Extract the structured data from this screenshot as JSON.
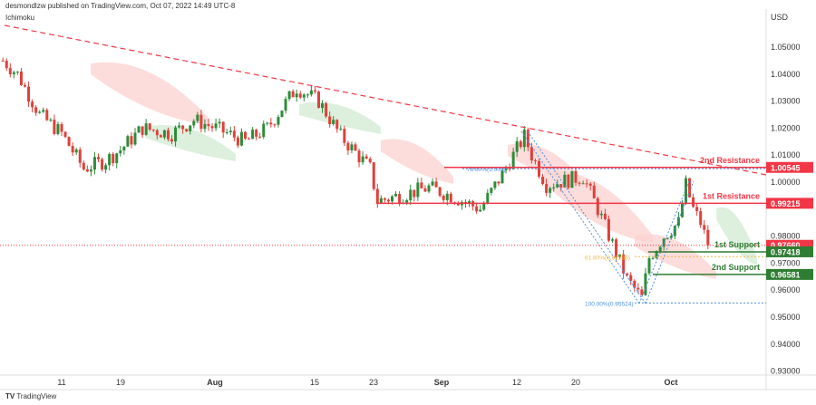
{
  "header": {
    "published": "desmondlzw published on TradingView.com, Oct 07, 2022 14:49 UTC-8",
    "indicator": "Ichimoku"
  },
  "footer": {
    "brand": "TradingView"
  },
  "colors": {
    "up": "#2e8b3a",
    "down": "#e0403a",
    "resistance": "#f23645",
    "support": "#2e7d32",
    "fib_618": "#f5b942",
    "fib_blue": "#4a90e2",
    "cloud_red": "#fbd5d2",
    "cloud_green": "#d3ecd5"
  },
  "chart_data": {
    "type": "candlestick",
    "symbol_currency": "USD",
    "y_ticks": [
      "1.05000",
      "1.04000",
      "1.03000",
      "1.02000",
      "1.01000",
      "1.00000",
      "0.98000",
      "0.97000",
      "0.96000",
      "0.95000",
      "0.94000",
      "0.93000"
    ],
    "x_ticks": [
      "11",
      "19",
      "Aug",
      "15",
      "23",
      "Sep",
      "12",
      "20",
      "Oct"
    ],
    "ylim": [
      0.925,
      1.062
    ],
    "price_path": [
      [
        "Jul 03",
        1.045
      ],
      [
        "Jul 05",
        1.04
      ],
      [
        "Jul 08",
        1.025
      ],
      [
        "Jul 11",
        1.018
      ],
      [
        "Jul 14",
        1.005
      ],
      [
        "Jul 17",
        1.008
      ],
      [
        "Jul 19",
        1.012
      ],
      [
        "Jul 22",
        1.02
      ],
      [
        "Jul 26",
        1.018
      ],
      [
        "Jul 29",
        1.023
      ],
      [
        "Aug 01",
        1.02
      ],
      [
        "Aug 05",
        1.015
      ],
      [
        "Aug 08",
        1.02
      ],
      [
        "Aug 12",
        1.035
      ],
      [
        "Aug 15",
        1.03
      ],
      [
        "Aug 18",
        1.017
      ],
      [
        "Aug 22",
        1.005
      ],
      [
        "Aug 23",
        0.993
      ],
      [
        "Aug 26",
        0.995
      ],
      [
        "Aug 30",
        0.998
      ],
      [
        "Sep 02",
        0.995
      ],
      [
        "Sep 06",
        0.99
      ],
      [
        "Sep 09",
        1.003
      ],
      [
        "Sep 12",
        1.017
      ],
      [
        "Sep 13",
        1.01
      ],
      [
        "Sep 15",
        0.999
      ],
      [
        "Sep 20",
        1.002
      ],
      [
        "Sep 22",
        0.99
      ],
      [
        "Sep 26",
        0.964
      ],
      [
        "Sep 28",
        0.957
      ],
      [
        "Sep 29",
        0.972
      ],
      [
        "Oct 01",
        0.98
      ],
      [
        "Oct 03",
        0.985
      ],
      [
        "Oct 04",
        0.999
      ],
      [
        "Oct 05",
        0.99
      ],
      [
        "Oct 06",
        0.985
      ],
      [
        "Oct 07",
        0.9766
      ]
    ],
    "levels": [
      {
        "name": "2nd Resistance",
        "price": 1.00545,
        "label": "1.00545",
        "type": "resistance"
      },
      {
        "name": "1st Resistance",
        "price": 0.99215,
        "label": "0.99215",
        "type": "resistance"
      },
      {
        "name": "1st Support",
        "price": 0.97418,
        "label": "0.97418",
        "type": "support"
      },
      {
        "name": "2nd Support",
        "price": 0.96581,
        "label": "0.96581",
        "type": "support"
      }
    ],
    "current_price": {
      "price": 0.9766,
      "label": "0.97660"
    },
    "fib": [
      {
        "label": "78.60%(1.005)",
        "price": 1.005
      },
      {
        "label": "61.80%(0.97238)",
        "price": 0.97238
      },
      {
        "label": "100.00%(0.95524)",
        "price": 0.95524
      }
    ]
  }
}
